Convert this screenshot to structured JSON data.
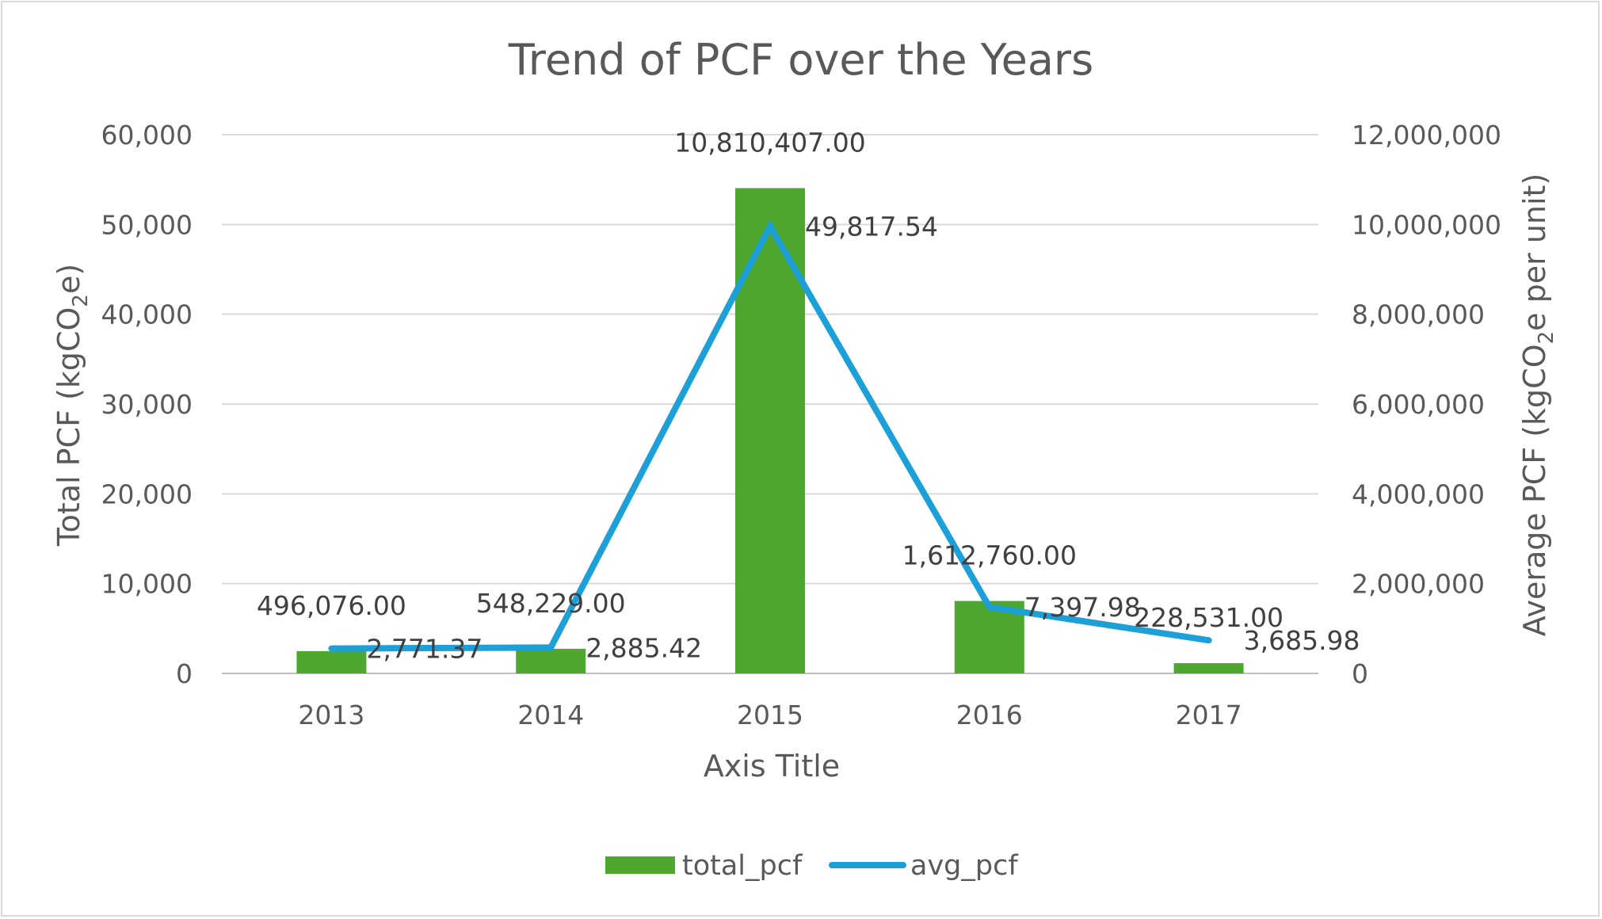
{
  "chart_data": {
    "type": "bar",
    "title": "Trend of PCF over the Years",
    "xlabel": "Axis Title",
    "ylabel_left": "Total PCF (kgCO",
    "ylabel_left_sub": "2",
    "ylabel_left_end": "e)",
    "ylabel_right": "Average PCF (kgCO",
    "ylabel_right_sub": "2",
    "ylabel_right_end": "e per unit)",
    "categories": [
      "2013",
      "2014",
      "2015",
      "2016",
      "2017"
    ],
    "ylim_left": [
      0,
      60000
    ],
    "ylim_right": [
      0,
      12000000
    ],
    "left_ticks": [
      "0",
      "10,000",
      "20,000",
      "30,000",
      "40,000",
      "50,000",
      "60,000"
    ],
    "right_ticks": [
      "0",
      "2,000,000",
      "4,000,000",
      "6,000,000",
      "8,000,000",
      "10,000,000",
      "12,000,000"
    ],
    "grid": true,
    "legend_position": "bottom",
    "series": [
      {
        "name": "total_pcf",
        "type": "bar",
        "axis": "right",
        "color": "#4ea72e",
        "values": [
          496076,
          548229,
          10810407,
          1612760,
          228531
        ],
        "labels": [
          "496,076.00",
          "548,229.00",
          "10,810,407.00",
          "1,612,760.00",
          "228,531.00"
        ]
      },
      {
        "name": "avg_pcf",
        "type": "line",
        "axis": "left",
        "color": "#1da0d8",
        "values": [
          2771.37,
          2885.42,
          49817.54,
          7397.98,
          3685.98
        ],
        "labels": [
          "2,771.37",
          "2,885.42",
          "49,817.54",
          "7,397.98",
          "3,685.98"
        ]
      }
    ]
  }
}
